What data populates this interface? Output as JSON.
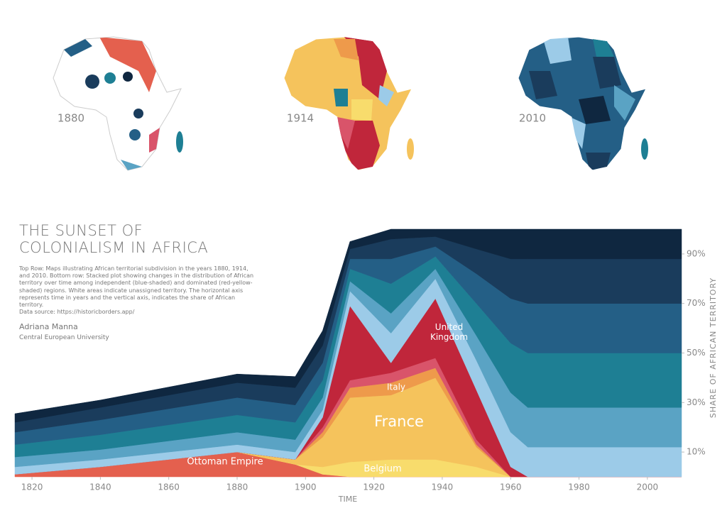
{
  "maps": [
    {
      "label": "1880"
    },
    {
      "label": "1914"
    },
    {
      "label": "2010"
    }
  ],
  "description": "Top Row: Maps illustrating African territorial subdivision in the years 1880, 1914, and 2010. Bottom row: Stacked plot showing changes in the distribution of African territory over time among independent (blue-shaded) and dominated (red-yellow-shaded) regions. White areas indicate unassigned territory. The horizontal axis represents time in years and the vertical axis, indicates the share of African territory.",
  "source": "Data source:  https://historicborders.app/",
  "author": "Adriana Manna",
  "affiliation": "Central European University",
  "chart_data": {
    "type": "stacked_area",
    "title": "THE SUNSET OF COLONIALISM IN AFRICA",
    "x_label": "TIME",
    "y_label": "SHARE OF AFRICAN TERRITORY",
    "x": [
      1815,
      1840,
      1880,
      1897,
      1905,
      1913,
      1925,
      1938,
      1950,
      1960,
      1965,
      1980,
      2010
    ],
    "xlim": [
      1815,
      2010
    ],
    "xticks": [
      1820,
      1840,
      1860,
      1880,
      1900,
      1920,
      1940,
      1960,
      1980,
      2000
    ],
    "ylim": [
      0,
      100
    ],
    "yticks": [
      {
        "value": 10,
        "label": "10%"
      },
      {
        "value": 30,
        "label": "30%"
      },
      {
        "value": 50,
        "label": "50%"
      },
      {
        "value": 70,
        "label": "70%"
      },
      {
        "value": 90,
        "label": "90%"
      }
    ],
    "y_axis_side": "right",
    "grid": false,
    "series": [
      {
        "name": "Ottoman Empire",
        "color": "#e4604e",
        "values": [
          1,
          4,
          10,
          5,
          1,
          0,
          0,
          0,
          0,
          0,
          0,
          0,
          0
        ]
      },
      {
        "name": "Belgium",
        "color": "#f8dc6c",
        "values": [
          0,
          0,
          0,
          0,
          3,
          6,
          7,
          7,
          4,
          0,
          0,
          0,
          0
        ]
      },
      {
        "name": "France",
        "color": "#f5c35c",
        "values": [
          0,
          0,
          0,
          2,
          12,
          26,
          26,
          33,
          8,
          0,
          0,
          0,
          0
        ]
      },
      {
        "name": "Italy",
        "color": "#ee9a4b",
        "values": [
          0,
          0,
          0,
          0,
          2,
          4,
          5,
          4,
          1,
          0,
          0,
          0,
          0
        ]
      },
      {
        "color": "#d9546a",
        "values": [
          0,
          0,
          0,
          0,
          2,
          3,
          4,
          4,
          2,
          0,
          0,
          0,
          0
        ]
      },
      {
        "name": "United Kingdom",
        "color": "#c0263b",
        "values": [
          0,
          0,
          0,
          0,
          4,
          30,
          4,
          24,
          20,
          4,
          0,
          0,
          0
        ]
      },
      {
        "color": "#9ccbe8",
        "values": [
          3,
          3,
          3,
          3,
          3,
          6,
          12,
          8,
          12,
          14,
          12,
          12,
          12
        ]
      },
      {
        "color": "#5aa3c4",
        "values": [
          4,
          4,
          5,
          5,
          5,
          4,
          8,
          4,
          10,
          16,
          16,
          16,
          16
        ]
      },
      {
        "color": "#1e7f94",
        "values": [
          5,
          6,
          7,
          7,
          7,
          5,
          12,
          5,
          13,
          20,
          22,
          22,
          22
        ]
      },
      {
        "color": "#245f86",
        "values": [
          5,
          6,
          7,
          7,
          7,
          4,
          10,
          4,
          12,
          18,
          20,
          20,
          20
        ]
      },
      {
        "color": "#1a3c5c",
        "values": [
          4,
          5,
          6,
          7,
          7,
          4,
          8,
          4,
          10,
          16,
          18,
          18,
          18
        ]
      },
      {
        "color": "#0f2740",
        "values": [
          3.5,
          3,
          3.5,
          4.5,
          6,
          3,
          4,
          3,
          8,
          12,
          12,
          12,
          12
        ]
      }
    ]
  }
}
